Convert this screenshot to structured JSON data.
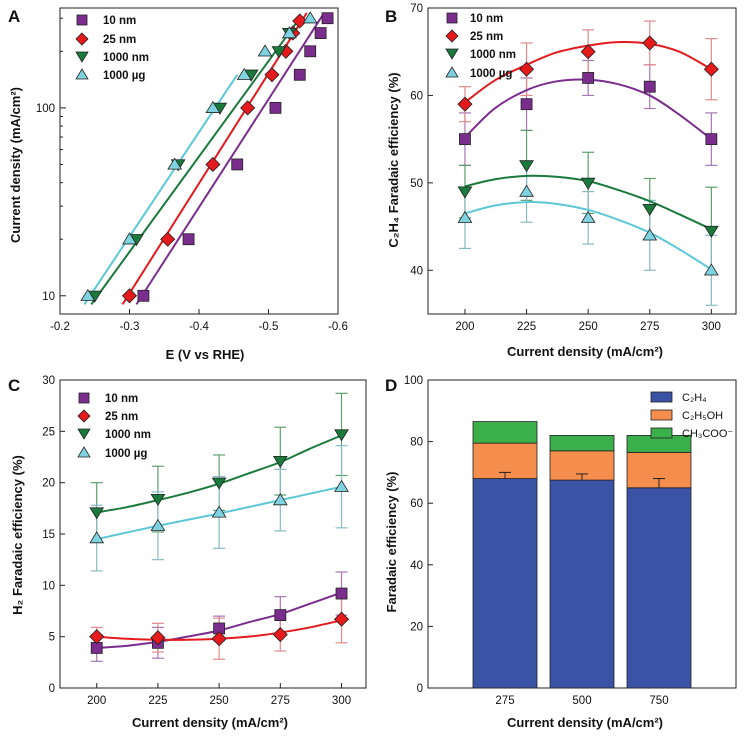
{
  "panel_letters": [
    "A",
    "B",
    "C",
    "D"
  ],
  "legend_text": {
    "s10": "10 nm",
    "s25": "25 nm",
    "s1000": "1000 nm",
    "s1000ug": "1000 µg"
  },
  "axis_text": {
    "a_x": "E (V vs RHE)",
    "a_y": "Current density (mA/cm²)",
    "b_x": "Current density (mA/cm²)",
    "b_y": "C₂H₄ Faradaic efficiency (%)",
    "c_x": "Current density (mA/cm²)",
    "c_y": "H₂ Faradaic efficiency (%)",
    "d_x": "Current density (mA/cm²)",
    "d_y": "Faradaic efficiency (%)"
  },
  "legend_d": {
    "c2h4": "C₂H₄",
    "c2h5oh": "C₂H₅OH",
    "ch3coo": "CH₃COO⁻"
  },
  "colors": {
    "s10": "#7b2d8e",
    "s25": "#e41a1c",
    "s1000": "#1a7a3c",
    "s1000ug": "#7fd3e0",
    "s1000ug_line": "#5cc8d6",
    "err25": "#e38b8b",
    "err10": "#a678b4",
    "err1000": "#5f9e6e",
    "err1000ug": "#8ab9c4",
    "bar_c2h4": "#3a53a4",
    "bar_c2h5oh": "#f58d4d",
    "bar_ch3coo": "#3aaf4a"
  },
  "chart_data": [
    {
      "panel": "A",
      "type": "line",
      "title": "",
      "xlabel": "E (V vs RHE)",
      "ylabel": "Current density (mA/cm²)",
      "xlim": [
        -0.2,
        -0.6
      ],
      "yscale": "log",
      "ylim": [
        8,
        340
      ],
      "x_ticks": [
        -0.2,
        -0.3,
        -0.4,
        -0.5,
        -0.6
      ],
      "x_tick_labels": [
        "-0.2",
        "-0.3",
        "-0.4",
        "-0.5",
        "-0.6"
      ],
      "y_ticks": [
        10,
        100
      ],
      "y_tick_labels": [
        "10",
        "100"
      ],
      "series": [
        {
          "name": "10 nm",
          "key": "s10",
          "marker": "square",
          "points": [
            [
              -0.32,
              10
            ],
            [
              -0.385,
              20
            ],
            [
              -0.455,
              50
            ],
            [
              -0.51,
              100
            ],
            [
              -0.545,
              150
            ],
            [
              -0.56,
              200
            ],
            [
              -0.575,
              250
            ],
            [
              -0.585,
              300
            ]
          ],
          "fit": [
            [
              -0.31,
              9
            ],
            [
              -0.58,
              320
            ]
          ]
        },
        {
          "name": "25 nm",
          "key": "s25",
          "marker": "diamond",
          "points": [
            [
              -0.3,
              10
            ],
            [
              -0.355,
              20
            ],
            [
              -0.42,
              50
            ],
            [
              -0.47,
              100
            ],
            [
              -0.505,
              150
            ],
            [
              -0.525,
              200
            ],
            [
              -0.535,
              250
            ],
            [
              -0.545,
              290
            ]
          ],
          "fit": [
            [
              -0.29,
              9
            ],
            [
              -0.555,
              320
            ]
          ]
        },
        {
          "name": "1000 nm",
          "key": "s1000",
          "marker": "triangle-down",
          "points": [
            [
              -0.25,
              10
            ],
            [
              -0.31,
              20
            ],
            [
              -0.37,
              50
            ],
            [
              -0.43,
              100
            ],
            [
              -0.475,
              150
            ],
            [
              -0.515,
              200
            ],
            [
              -0.53,
              250
            ]
          ],
          "fit": [
            [
              -0.245,
              9
            ],
            [
              -0.545,
              300
            ]
          ]
        },
        {
          "name": "1000 µg",
          "key": "s1000ug",
          "marker": "triangle-up",
          "points": [
            [
              -0.24,
              10
            ],
            [
              -0.3,
              20
            ],
            [
              -0.365,
              50
            ],
            [
              -0.42,
              100
            ],
            [
              -0.465,
              150
            ],
            [
              -0.495,
              200
            ],
            [
              -0.53,
              250
            ],
            [
              -0.56,
              300
            ]
          ],
          "fit": [
            [
              -0.235,
              9
            ],
            [
              -0.455,
              150
            ]
          ]
        }
      ]
    },
    {
      "panel": "B",
      "type": "line",
      "title": "",
      "xlabel": "Current density (mA/cm²)",
      "ylabel": "C₂H₄ Faradaic efficiency (%)",
      "xlim": [
        185,
        310
      ],
      "ylim": [
        35,
        70
      ],
      "x_ticks": [
        200,
        225,
        250,
        275,
        300
      ],
      "y_ticks": [
        40,
        50,
        60,
        70
      ],
      "x": [
        200,
        225,
        250,
        275,
        300
      ],
      "series": [
        {
          "name": "10 nm",
          "key": "s10",
          "marker": "square",
          "values": [
            55,
            59,
            62,
            61,
            55
          ],
          "errors": [
            3,
            3,
            2,
            2.5,
            3
          ],
          "fit": [
            [
              200,
              55.2
            ],
            [
              212,
              58.5
            ],
            [
              225,
              60.6
            ],
            [
              237,
              61.6
            ],
            [
              250,
              61.8
            ],
            [
              262,
              61.3
            ],
            [
              275,
              60.0
            ],
            [
              287,
              57.8
            ],
            [
              300,
              55.0
            ]
          ]
        },
        {
          "name": "25 nm",
          "key": "s25",
          "marker": "diamond",
          "values": [
            59,
            63,
            65,
            66,
            63
          ],
          "errors": [
            2,
            3,
            2.5,
            2.5,
            3.5
          ],
          "fit": [
            [
              200,
              59.2
            ],
            [
              212,
              61.7
            ],
            [
              225,
              63.5
            ],
            [
              237,
              64.9
            ],
            [
              250,
              65.7
            ],
            [
              262,
              66.1
            ],
            [
              275,
              65.9
            ],
            [
              287,
              65.0
            ],
            [
              300,
              63.0
            ]
          ]
        },
        {
          "name": "1000 nm",
          "key": "s1000",
          "marker": "triangle-down",
          "values": [
            49,
            52,
            50,
            47,
            44.5
          ],
          "errors": [
            3,
            4,
            3.5,
            3.5,
            5
          ],
          "fit": [
            [
              200,
              49.6
            ],
            [
              212,
              50.4
            ],
            [
              225,
              50.8
            ],
            [
              237,
              50.7
            ],
            [
              250,
              50.2
            ],
            [
              262,
              49.2
            ],
            [
              275,
              47.9
            ],
            [
              287,
              46.4
            ],
            [
              300,
              44.7
            ]
          ]
        },
        {
          "name": "1000 µg",
          "key": "s1000ug",
          "marker": "triangle-up",
          "values": [
            46,
            49,
            46,
            44,
            40
          ],
          "errors": [
            3.5,
            3.5,
            3,
            4,
            4
          ],
          "fit": [
            [
              200,
              46.5
            ],
            [
              212,
              47.4
            ],
            [
              225,
              47.8
            ],
            [
              237,
              47.6
            ],
            [
              250,
              46.9
            ],
            [
              262,
              45.8
            ],
            [
              275,
              44.3
            ],
            [
              287,
              42.4
            ],
            [
              300,
              40.1
            ]
          ]
        }
      ]
    },
    {
      "panel": "C",
      "type": "line",
      "title": "",
      "xlabel": "Current density (mA/cm²)",
      "ylabel": "H₂ Faradaic efficiency (%)",
      "xlim": [
        185,
        310
      ],
      "ylim": [
        0,
        30
      ],
      "x_ticks": [
        200,
        225,
        250,
        275,
        300
      ],
      "y_ticks": [
        0,
        5,
        10,
        15,
        20,
        25,
        30
      ],
      "x": [
        200,
        225,
        250,
        275,
        300
      ],
      "series": [
        {
          "name": "10 nm",
          "key": "s10",
          "marker": "square",
          "values": [
            3.9,
            4.4,
            5.8,
            7.1,
            9.2
          ],
          "errors": [
            1.3,
            1.5,
            1.2,
            1.8,
            2.1
          ],
          "fit": [
            [
              200,
              3.9
            ],
            [
              212,
              4.1
            ],
            [
              225,
              4.5
            ],
            [
              237,
              5.0
            ],
            [
              250,
              5.6
            ],
            [
              262,
              6.4
            ],
            [
              275,
              7.2
            ],
            [
              287,
              8.2
            ],
            [
              300,
              9.3
            ]
          ]
        },
        {
          "name": "25 nm",
          "key": "s25",
          "marker": "diamond",
          "values": [
            5.0,
            4.9,
            4.8,
            5.2,
            6.7
          ],
          "errors": [
            0.9,
            1.4,
            2.0,
            1.6,
            2.3
          ],
          "fit": [
            [
              200,
              5.0
            ],
            [
              212,
              4.8
            ],
            [
              225,
              4.7
            ],
            [
              237,
              4.7
            ],
            [
              250,
              4.8
            ],
            [
              262,
              5.0
            ],
            [
              275,
              5.4
            ],
            [
              287,
              5.9
            ],
            [
              300,
              6.6
            ]
          ]
        },
        {
          "name": "1000 nm",
          "key": "s1000",
          "marker": "triangle-down",
          "values": [
            17.1,
            18.4,
            20.0,
            22.1,
            24.7
          ],
          "errors": [
            2.9,
            3.2,
            2.7,
            3.3,
            4.0
          ],
          "fit": [
            [
              200,
              17.1
            ],
            [
              212,
              17.6
            ],
            [
              225,
              18.3
            ],
            [
              237,
              19.0
            ],
            [
              250,
              19.9
            ],
            [
              262,
              20.9
            ],
            [
              275,
              22.0
            ],
            [
              287,
              23.3
            ],
            [
              300,
              24.6
            ]
          ]
        },
        {
          "name": "1000 µg",
          "key": "s1000ug",
          "marker": "triangle-up",
          "values": [
            14.6,
            15.8,
            17.1,
            18.3,
            19.6
          ],
          "errors": [
            3.2,
            3.3,
            3.5,
            3.0,
            4.0
          ],
          "fit": [
            [
              200,
              14.5
            ],
            [
              225,
              15.8
            ],
            [
              250,
              17.0
            ],
            [
              275,
              18.3
            ],
            [
              300,
              19.6
            ]
          ]
        }
      ]
    },
    {
      "panel": "D",
      "type": "bar",
      "stacked": true,
      "title": "",
      "xlabel": "Current density (mA/cm²)",
      "ylabel": "Faradaic efficiency (%)",
      "ylim": [
        0,
        100
      ],
      "y_ticks": [
        0,
        20,
        40,
        60,
        80,
        100
      ],
      "categories": [
        "275",
        "500",
        "750"
      ],
      "series": [
        {
          "name": "C₂H₄",
          "key": "bar_c2h4",
          "values": [
            68,
            67.5,
            65
          ],
          "errors": [
            2,
            2,
            3
          ]
        },
        {
          "name": "C₂H₅OH",
          "key": "bar_c2h5oh",
          "values": [
            11.5,
            9.5,
            11.5
          ]
        },
        {
          "name": "CH₃COO⁻",
          "key": "bar_ch3coo",
          "values": [
            7,
            5,
            5.5
          ]
        }
      ]
    }
  ]
}
